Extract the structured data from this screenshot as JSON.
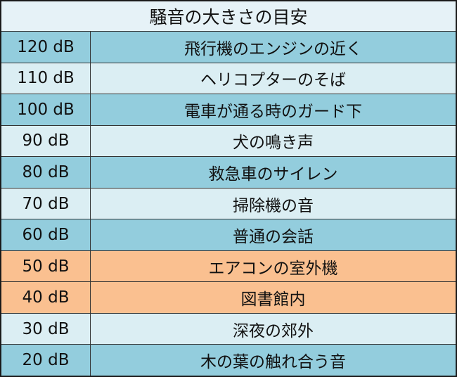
{
  "title": "騒音の大きさの目安",
  "colors": {
    "blue": "#93cddd",
    "light": "#dbeef3",
    "orange": "#fac090",
    "title_bg": "#e6f2f7"
  },
  "rows": [
    {
      "db": "120 dB",
      "source": "飛行機のエンジンの近く",
      "style": "blue"
    },
    {
      "db": "110 dB",
      "source": "ヘリコプターのそば",
      "style": "light"
    },
    {
      "db": "100 dB",
      "source": "電車が通る時のガード下",
      "style": "blue"
    },
    {
      "db": "90 dB",
      "source": "犬の鳴き声",
      "style": "light"
    },
    {
      "db": "80 dB",
      "source": "救急車のサイレン",
      "style": "blue"
    },
    {
      "db": "70 dB",
      "source": "掃除機の音",
      "style": "light"
    },
    {
      "db": "60 dB",
      "source": "普通の会話",
      "style": "blue"
    },
    {
      "db": "50 dB",
      "source": "エアコンの室外機",
      "style": "orange"
    },
    {
      "db": "40 dB",
      "source": "図書館内",
      "style": "orange"
    },
    {
      "db": "30 dB",
      "source": "深夜の郊外",
      "style": "light"
    },
    {
      "db": "20 dB",
      "source": "木の葉の触れ合う音",
      "style": "blue"
    }
  ]
}
